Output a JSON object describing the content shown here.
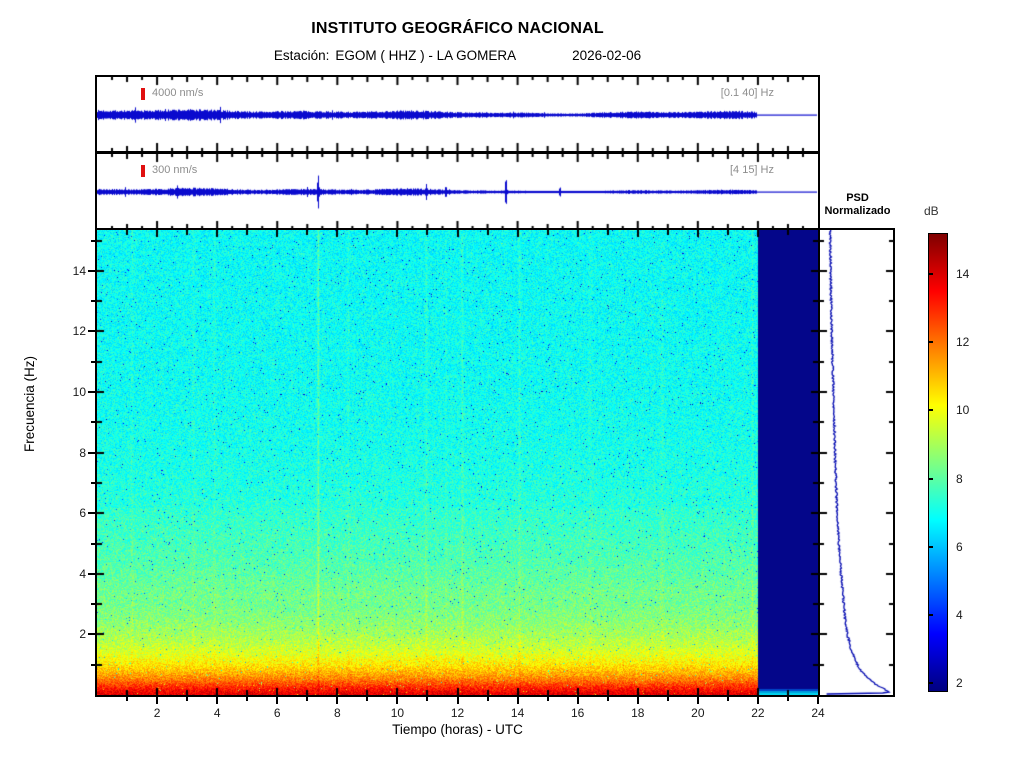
{
  "header": {
    "title": "INSTITUTO GEOGRÁFICO NACIONAL",
    "station_label": "Estación:",
    "station_value": "EGOM ( HHZ ) - LA GOMERA",
    "date": "2026-02-06"
  },
  "traces": [
    {
      "scale_label": "4000 nm/s",
      "band_label": "[0.1 40] Hz"
    },
    {
      "scale_label": "300 nm/s",
      "band_label": "[4 15] Hz"
    }
  ],
  "axes": {
    "xlabel": "Tiempo (horas) - UTC",
    "ylabel": "Frecuencia  (Hz)",
    "x_tick_labels": [
      2,
      4,
      6,
      8,
      10,
      12,
      14,
      16,
      18,
      20,
      22,
      24
    ],
    "y_tick_labels": [
      2,
      4,
      6,
      8,
      10,
      12,
      14
    ]
  },
  "psd": {
    "title_line1": "PSD",
    "title_line2": "Normalizado"
  },
  "colorbar": {
    "label": "dB",
    "ticks": [
      14,
      12,
      10,
      8,
      6,
      4,
      2
    ],
    "vmin": 1.8,
    "vmax": 15.2,
    "colormap": "jet"
  },
  "chart_data": [
    {
      "type": "line",
      "name": "seismogram-broadband",
      "scale_bar": "4000 nm/s",
      "filter_band_hz": [
        0.1,
        40
      ],
      "x_range_hours": [
        0,
        24
      ],
      "data_end_hour": 22,
      "description": "continuous background noise band, roughly constant amplitude, flat line after 22h"
    },
    {
      "type": "line",
      "name": "seismogram-filtered",
      "scale_bar": "300 nm/s",
      "filter_band_hz": [
        4,
        15
      ],
      "x_range_hours": [
        0,
        24
      ],
      "data_end_hour": 22,
      "spikes": [
        {
          "hour": 7.35,
          "amp": 17
        },
        {
          "hour": 10.95,
          "amp": 8
        },
        {
          "hour": 11.6,
          "amp": 6
        },
        {
          "hour": 13.6,
          "amp": 14
        },
        {
          "hour": 15.4,
          "amp": 5
        }
      ]
    },
    {
      "type": "heatmap",
      "name": "spectrogram",
      "xlabel": "Tiempo (horas) - UTC",
      "ylabel": "Frecuencia (Hz)",
      "x_range_hours": [
        0,
        24
      ],
      "data_end_hour": 22,
      "freq_range_hz": [
        0,
        15.35
      ],
      "value_units": "dB",
      "value_range": [
        1.8,
        15.2
      ],
      "colormap": "jet",
      "background_profile_freq_db": [
        [
          0,
          14.0
        ],
        [
          0.15,
          13.5
        ],
        [
          0.3,
          12.9
        ],
        [
          0.5,
          12.0
        ],
        [
          0.7,
          11.3
        ],
        [
          1.0,
          10.5
        ],
        [
          1.3,
          9.9
        ],
        [
          1.6,
          9.45
        ],
        [
          2.0,
          9.0
        ],
        [
          2.5,
          8.6
        ],
        [
          3.0,
          8.35
        ],
        [
          4.0,
          7.9
        ],
        [
          5.0,
          7.6
        ],
        [
          6.0,
          7.35
        ],
        [
          8.0,
          7.1
        ],
        [
          10.0,
          7.0
        ],
        [
          12.0,
          6.95
        ],
        [
          15.35,
          6.9
        ]
      ],
      "vertical_streaks": [
        {
          "hour": 1.15,
          "strength": 0.35,
          "width": 2.0
        },
        {
          "hour": 3.2,
          "strength": 0.3,
          "width": 2.5
        },
        {
          "hour": 3.9,
          "strength": 0.3,
          "width": 2.0
        },
        {
          "hour": 7.35,
          "strength": 1.1,
          "width": 1.6
        },
        {
          "hour": 8.35,
          "strength": 0.3,
          "width": 2.0
        },
        {
          "hour": 10.95,
          "strength": 0.45,
          "width": 2.0
        },
        {
          "hour": 11.6,
          "strength": 0.3,
          "width": 1.5
        },
        {
          "hour": 12.15,
          "strength": 0.5,
          "width": 2.0
        },
        {
          "hour": 14.05,
          "strength": 0.5,
          "width": 2.0
        },
        {
          "hour": 16.4,
          "strength": 0.3,
          "width": 2.0
        },
        {
          "hour": 18.8,
          "strength": 0.3,
          "width": 2.5
        },
        {
          "hour": 21.8,
          "strength": 0.45,
          "width": 1.5
        }
      ]
    },
    {
      "type": "line",
      "name": "psd-normalizado",
      "freq_range_hz": [
        0,
        15.35
      ],
      "profile_freq_xfrac": [
        [
          15.35,
          0.14
        ],
        [
          14,
          0.145
        ],
        [
          12,
          0.16
        ],
        [
          10,
          0.185
        ],
        [
          8,
          0.205
        ],
        [
          6,
          0.235
        ],
        [
          5,
          0.26
        ],
        [
          4,
          0.29
        ],
        [
          3,
          0.325
        ],
        [
          2.5,
          0.345
        ],
        [
          2,
          0.375
        ],
        [
          1.5,
          0.43
        ],
        [
          1.2,
          0.47
        ],
        [
          1.0,
          0.51
        ],
        [
          0.8,
          0.565
        ],
        [
          0.6,
          0.64
        ],
        [
          0.45,
          0.71
        ],
        [
          0.3,
          0.8
        ],
        [
          0.2,
          0.875
        ],
        [
          0.12,
          0.93
        ],
        [
          0.07,
          0.95
        ],
        [
          0.05,
          0.5
        ],
        [
          0.03,
          0.02
        ]
      ]
    }
  ]
}
